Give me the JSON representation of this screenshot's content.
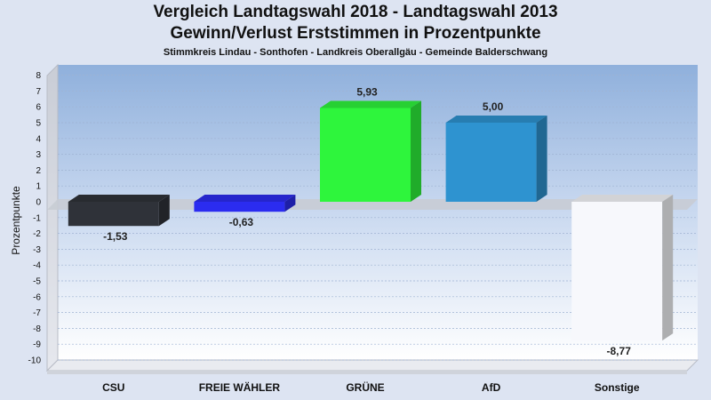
{
  "chart_data": {
    "type": "bar",
    "title": "Vergleich Landtagswahl 2018 - Landtagswahl 2013",
    "subtitle": "Gewinn/Verlust Erststimmen in Prozentpunkte",
    "subsubtitle": "Stimmkreis Lindau - Sonthofen - Landkreis Oberallgäu - Gemeinde Balderschwang",
    "ylabel": "Prozentpunkte",
    "xlabel": "",
    "ylim": [
      -10,
      8
    ],
    "yticks": [
      8,
      7,
      6,
      5,
      4,
      3,
      2,
      1,
      0,
      -1,
      -2,
      -3,
      -4,
      -5,
      -6,
      -7,
      -8,
      -9,
      -10
    ],
    "categories": [
      "CSU",
      "FREIE WÄHLER",
      "GRÜNE",
      "AfD",
      "Sonstige"
    ],
    "values": [
      -1.53,
      -0.63,
      5.93,
      5.0,
      -8.77
    ],
    "value_labels": [
      "-1,53",
      "-0,63",
      "5,93",
      "5,00",
      "-8,77"
    ],
    "colors": [
      "#2f3239",
      "#2b2cf0",
      "#2ef53c",
      "#2e93d0",
      "#f7f8fc"
    ],
    "grid": true,
    "legend": "none"
  }
}
